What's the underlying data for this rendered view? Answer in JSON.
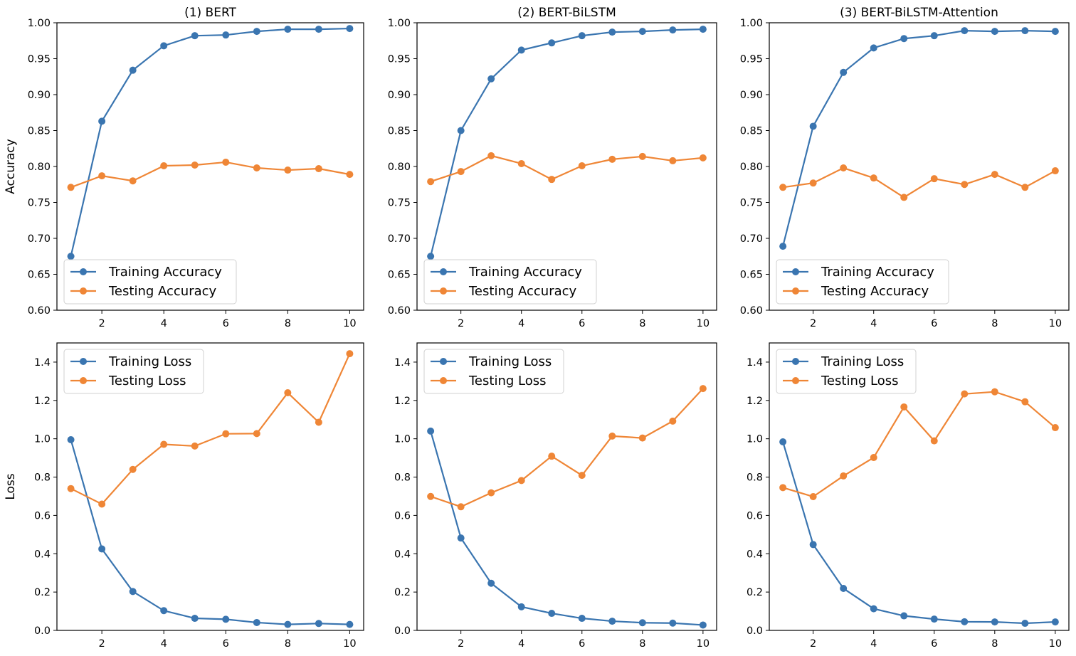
{
  "chart_data": [
    {
      "type": "line",
      "title": "(1) BERT",
      "xlabel": "",
      "ylabel": "Accuracy",
      "xlim": [
        0.55,
        10.45
      ],
      "ylim": [
        0.6,
        1.0
      ],
      "xticks": [
        "2",
        "4",
        "6",
        "8",
        "10"
      ],
      "yticks": [
        "0.60",
        "0.65",
        "0.70",
        "0.75",
        "0.80",
        "0.85",
        "0.90",
        "0.95",
        "1.00"
      ],
      "legend_position": "lower-left",
      "x": [
        1,
        2,
        3,
        4,
        5,
        6,
        7,
        8,
        9,
        10
      ],
      "series": [
        {
          "name": "Training Accuracy",
          "color": "#3a75b0",
          "values": [
            0.675,
            0.863,
            0.934,
            0.968,
            0.982,
            0.983,
            0.988,
            0.991,
            0.991,
            0.992
          ]
        },
        {
          "name": "Testing Accuracy",
          "color": "#ef8636",
          "values": [
            0.771,
            0.787,
            0.78,
            0.801,
            0.802,
            0.806,
            0.798,
            0.795,
            0.797,
            0.789
          ]
        }
      ]
    },
    {
      "type": "line",
      "title": "(2) BERT-BiLSTM",
      "xlabel": "",
      "ylabel": "",
      "xlim": [
        0.55,
        10.45
      ],
      "ylim": [
        0.6,
        1.0
      ],
      "xticks": [
        "2",
        "4",
        "6",
        "8",
        "10"
      ],
      "yticks": [
        "0.60",
        "0.65",
        "0.70",
        "0.75",
        "0.80",
        "0.85",
        "0.90",
        "0.95",
        "1.00"
      ],
      "legend_position": "lower-left",
      "x": [
        1,
        2,
        3,
        4,
        5,
        6,
        7,
        8,
        9,
        10
      ],
      "series": [
        {
          "name": "Training Accuracy",
          "color": "#3a75b0",
          "values": [
            0.675,
            0.85,
            0.922,
            0.962,
            0.972,
            0.982,
            0.987,
            0.988,
            0.99,
            0.991
          ]
        },
        {
          "name": "Testing Accuracy",
          "color": "#ef8636",
          "values": [
            0.779,
            0.793,
            0.815,
            0.804,
            0.782,
            0.801,
            0.81,
            0.814,
            0.808,
            0.812
          ]
        }
      ]
    },
    {
      "type": "line",
      "title": "(3) BERT-BiLSTM-Attention",
      "xlabel": "",
      "ylabel": "",
      "xlim": [
        0.55,
        10.45
      ],
      "ylim": [
        0.6,
        1.0
      ],
      "xticks": [
        "2",
        "4",
        "6",
        "8",
        "10"
      ],
      "yticks": [
        "0.60",
        "0.65",
        "0.70",
        "0.75",
        "0.80",
        "0.85",
        "0.90",
        "0.95",
        "1.00"
      ],
      "legend_position": "lower-left",
      "x": [
        1,
        2,
        3,
        4,
        5,
        6,
        7,
        8,
        9,
        10
      ],
      "series": [
        {
          "name": "Training Accuracy",
          "color": "#3a75b0",
          "values": [
            0.689,
            0.856,
            0.931,
            0.965,
            0.978,
            0.982,
            0.989,
            0.988,
            0.989,
            0.988
          ]
        },
        {
          "name": "Testing Accuracy",
          "color": "#ef8636",
          "values": [
            0.771,
            0.777,
            0.798,
            0.784,
            0.757,
            0.783,
            0.775,
            0.789,
            0.771,
            0.794
          ]
        }
      ]
    },
    {
      "type": "line",
      "title": "",
      "xlabel": "",
      "ylabel": "Loss",
      "xlim": [
        0.55,
        10.45
      ],
      "ylim": [
        0.0,
        1.5
      ],
      "xticks": [
        "2",
        "4",
        "6",
        "8",
        "10"
      ],
      "yticks": [
        "0.0",
        "0.2",
        "0.4",
        "0.6",
        "0.8",
        "1.0",
        "1.2",
        "1.4"
      ],
      "legend_position": "upper-left",
      "x": [
        1,
        2,
        3,
        4,
        5,
        6,
        7,
        8,
        9,
        10
      ],
      "series": [
        {
          "name": "Training Loss",
          "color": "#3a75b0",
          "values": [
            0.995,
            0.425,
            0.203,
            0.103,
            0.063,
            0.058,
            0.041,
            0.031,
            0.036,
            0.031
          ]
        },
        {
          "name": "Testing Loss",
          "color": "#ef8636",
          "values": [
            0.74,
            0.659,
            0.84,
            0.971,
            0.962,
            1.026,
            1.027,
            1.24,
            1.086,
            1.444
          ]
        }
      ]
    },
    {
      "type": "line",
      "title": "",
      "xlabel": "",
      "ylabel": "",
      "xlim": [
        0.55,
        10.45
      ],
      "ylim": [
        0.0,
        1.5
      ],
      "xticks": [
        "2",
        "4",
        "6",
        "8",
        "10"
      ],
      "yticks": [
        "0.0",
        "0.2",
        "0.4",
        "0.6",
        "0.8",
        "1.0",
        "1.2",
        "1.4"
      ],
      "legend_position": "upper-left",
      "x": [
        1,
        2,
        3,
        4,
        5,
        6,
        7,
        8,
        9,
        10
      ],
      "series": [
        {
          "name": "Training Loss",
          "color": "#3a75b0",
          "values": [
            1.04,
            0.482,
            0.246,
            0.123,
            0.089,
            0.063,
            0.048,
            0.04,
            0.038,
            0.028
          ]
        },
        {
          "name": "Testing Loss",
          "color": "#ef8636",
          "values": [
            0.699,
            0.645,
            0.718,
            0.782,
            0.909,
            0.809,
            1.014,
            1.004,
            1.092,
            1.262
          ]
        }
      ]
    },
    {
      "type": "line",
      "title": "",
      "xlabel": "",
      "ylabel": "",
      "xlim": [
        0.55,
        10.45
      ],
      "ylim": [
        0.0,
        1.5
      ],
      "xticks": [
        "2",
        "4",
        "6",
        "8",
        "10"
      ],
      "yticks": [
        "0.0",
        "0.2",
        "0.4",
        "0.6",
        "0.8",
        "1.0",
        "1.2",
        "1.4"
      ],
      "legend_position": "upper-left",
      "x": [
        1,
        2,
        3,
        4,
        5,
        6,
        7,
        8,
        9,
        10
      ],
      "series": [
        {
          "name": "Training Loss",
          "color": "#3a75b0",
          "values": [
            0.984,
            0.448,
            0.219,
            0.113,
            0.076,
            0.059,
            0.045,
            0.044,
            0.037,
            0.044
          ]
        },
        {
          "name": "Testing Loss",
          "color": "#ef8636",
          "values": [
            0.745,
            0.698,
            0.806,
            0.902,
            1.166,
            0.989,
            1.234,
            1.245,
            1.193,
            1.058
          ]
        }
      ]
    }
  ]
}
